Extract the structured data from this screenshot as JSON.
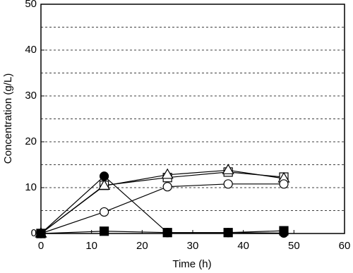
{
  "chart_data": {
    "type": "line",
    "x_label": "Time (h)",
    "y_label": "Concentration (g/L)",
    "xlim": [
      0,
      60
    ],
    "xticks": [
      0,
      10,
      20,
      30,
      40,
      50,
      60
    ],
    "ylim": [
      0,
      50
    ],
    "yticks": [
      0,
      10,
      20,
      30,
      40,
      50
    ],
    "grid_y": [
      5,
      10,
      15,
      20,
      25,
      30,
      35,
      40,
      45
    ],
    "grid_style": "dashed",
    "series": [
      {
        "marker": "square",
        "fill": "#ffffff",
        "color": "#000000",
        "x": [
          0,
          12.5,
          25,
          37,
          48
        ],
        "values": [
          0,
          10.5,
          12.2,
          13.4,
          12.3
        ]
      },
      {
        "marker": "triangle",
        "fill": "#ffffff",
        "color": "#000000",
        "x": [
          0,
          12.5,
          25,
          37,
          48
        ],
        "values": [
          0,
          10.4,
          12.8,
          13.8,
          12.0
        ]
      },
      {
        "marker": "circle",
        "fill": "#ffffff",
        "color": "#000000",
        "x": [
          0,
          12.5,
          25,
          37,
          48
        ],
        "values": [
          0,
          4.7,
          10.2,
          10.8,
          10.8
        ]
      },
      {
        "marker": "circle",
        "fill": "#000000",
        "color": "#000000",
        "x": [
          0,
          12.5,
          25,
          37,
          48
        ],
        "values": [
          0,
          12.5,
          0.2,
          0.2,
          0.1
        ]
      },
      {
        "marker": "square",
        "fill": "#000000",
        "color": "#000000",
        "x": [
          0,
          12.5,
          25,
          37,
          48
        ],
        "values": [
          0,
          0.5,
          0.2,
          0.2,
          0.6
        ]
      }
    ]
  }
}
